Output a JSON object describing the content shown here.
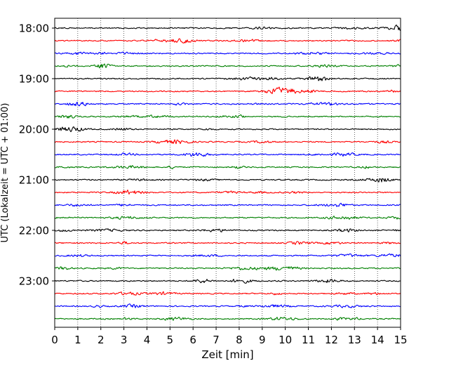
{
  "chart_data": {
    "type": "line",
    "title": "",
    "xlabel": "Zeit  [min]",
    "ylabel": "UTC (Lokalzeit = UTC + 01:00)",
    "x_ticks": [
      "0",
      "1",
      "2",
      "3",
      "4",
      "5",
      "6",
      "7",
      "8",
      "9",
      "10",
      "11",
      "12",
      "13",
      "14",
      "15"
    ],
    "xlim": [
      0,
      15
    ],
    "x_grid": "dotted vertical lines at each minute",
    "y_ticks": [
      "18:00",
      "19:00",
      "20:00",
      "21:00",
      "22:00",
      "23:00"
    ],
    "row_start": "18:00",
    "row_interval_minutes": 15,
    "row_count": 24,
    "color_cycle": [
      "#000000",
      "#ff0000",
      "#0000ff",
      "#008000"
    ],
    "traces_description": "helicorder-style seismogram: one noise trace per 15-minute row, colors cycling black, red, blue, green"
  }
}
